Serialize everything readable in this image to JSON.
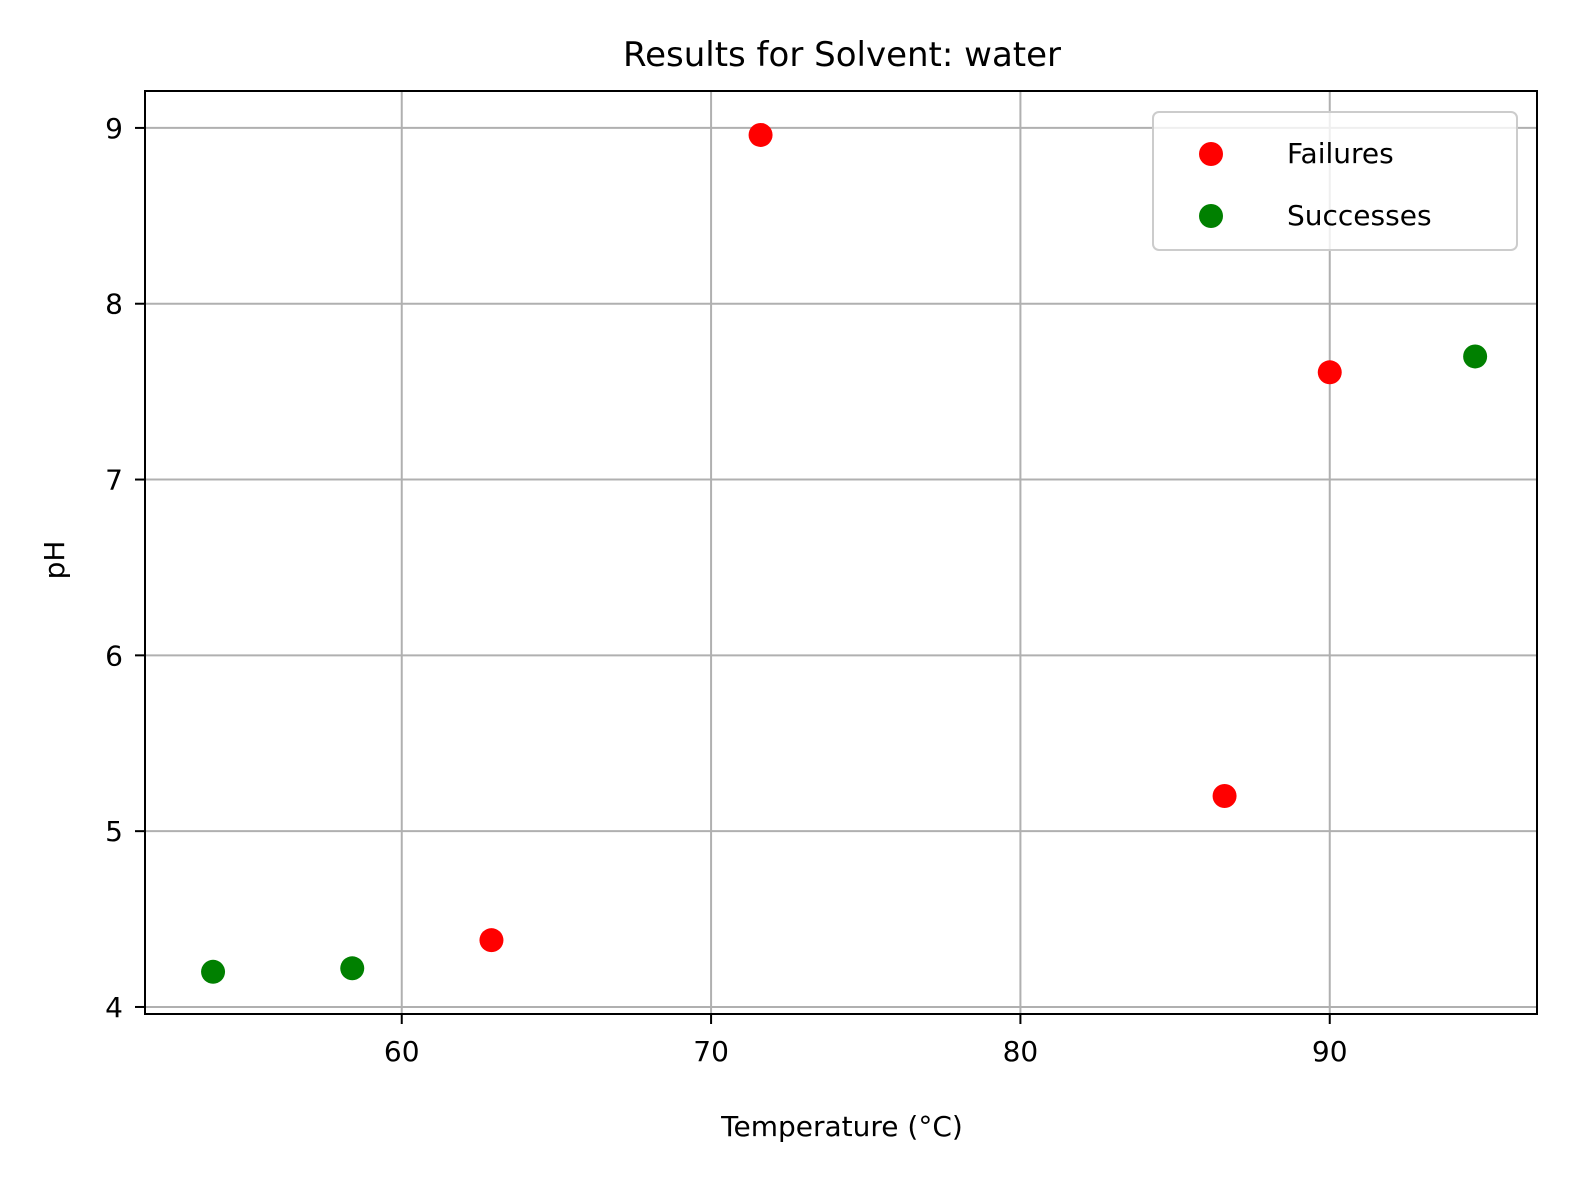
{
  "chart_data": {
    "type": "scatter",
    "title": "Results for Solvent: water",
    "xlabel": "Temperature (°C)",
    "ylabel": "pH",
    "xlim": [
      51.7,
      96.7
    ],
    "ylim": [
      3.96,
      9.21
    ],
    "xticks": [
      60,
      70,
      80,
      90
    ],
    "xtick_labels": [
      "60",
      "70",
      "80",
      "90"
    ],
    "yticks": [
      4,
      5,
      6,
      7,
      8,
      9
    ],
    "ytick_labels": [
      "4",
      "5",
      "6",
      "7",
      "8",
      "9"
    ],
    "grid": true,
    "legend_position": "top-right",
    "series": [
      {
        "name": "Failures",
        "color": "#ff0000",
        "points": [
          {
            "x": 71.6,
            "y": 8.96
          },
          {
            "x": 90.0,
            "y": 7.61
          },
          {
            "x": 86.6,
            "y": 5.2
          },
          {
            "x": 62.9,
            "y": 4.38
          }
        ]
      },
      {
        "name": "Successes",
        "color": "#008000",
        "points": [
          {
            "x": 94.7,
            "y": 7.7
          },
          {
            "x": 53.9,
            "y": 4.2
          },
          {
            "x": 58.4,
            "y": 4.22
          }
        ]
      }
    ]
  }
}
